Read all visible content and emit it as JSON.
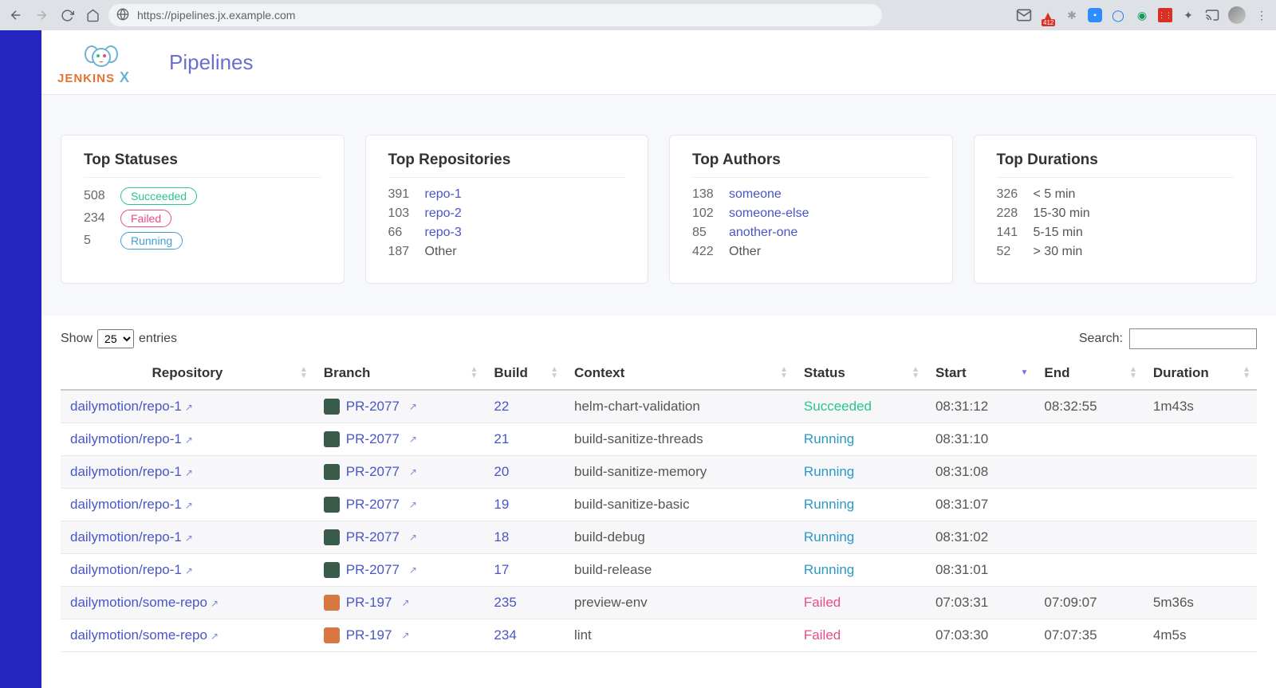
{
  "browser": {
    "url": "https://pipelines.jx.example.com",
    "ext_badge": "412"
  },
  "header": {
    "logo_text_a": "JENKINS",
    "logo_text_b": "X",
    "title": "Pipelines"
  },
  "cards": {
    "statuses": {
      "title": "Top Statuses",
      "rows": [
        {
          "count": "508",
          "label": "Succeeded",
          "pill_class": "succeeded"
        },
        {
          "count": "234",
          "label": "Failed",
          "pill_class": "failed"
        },
        {
          "count": "5",
          "label": "Running",
          "pill_class": "running"
        }
      ]
    },
    "repositories": {
      "title": "Top Repositories",
      "rows": [
        {
          "count": "391",
          "label": "repo-1",
          "is_link": true
        },
        {
          "count": "103",
          "label": "repo-2",
          "is_link": true
        },
        {
          "count": "66",
          "label": "repo-3",
          "is_link": true
        },
        {
          "count": "187",
          "label": "Other",
          "is_link": false
        }
      ]
    },
    "authors": {
      "title": "Top Authors",
      "rows": [
        {
          "count": "138",
          "label": "someone",
          "is_link": true
        },
        {
          "count": "102",
          "label": "someone-else",
          "is_link": true
        },
        {
          "count": "85",
          "label": "another-one",
          "is_link": true
        },
        {
          "count": "422",
          "label": "Other",
          "is_link": false
        }
      ]
    },
    "durations": {
      "title": "Top Durations",
      "rows": [
        {
          "count": "326",
          "label": "< 5 min"
        },
        {
          "count": "228",
          "label": "15-30 min"
        },
        {
          "count": "141",
          "label": "5-15 min"
        },
        {
          "count": "52",
          "label": "> 30 min"
        }
      ]
    }
  },
  "table": {
    "show_label_pre": "Show",
    "show_label_post": "entries",
    "show_value": "25",
    "search_label": "Search:",
    "columns": [
      "Repository",
      "Branch",
      "Build",
      "Context",
      "Status",
      "Start",
      "End",
      "Duration"
    ],
    "sorted_col": 5,
    "sorted_dir": "desc",
    "rows": [
      {
        "repo": "dailymotion/repo-1",
        "branch": "PR-2077",
        "avatar_bg": "#3a5a4a",
        "build": "22",
        "context": "helm-chart-validation",
        "status": "Succeeded",
        "status_class": "succeeded",
        "start": "08:31:12",
        "end": "08:32:55",
        "duration": "1m43s"
      },
      {
        "repo": "dailymotion/repo-1",
        "branch": "PR-2077",
        "avatar_bg": "#3a5a4a",
        "build": "21",
        "context": "build-sanitize-threads",
        "status": "Running",
        "status_class": "running",
        "start": "08:31:10",
        "end": "",
        "duration": ""
      },
      {
        "repo": "dailymotion/repo-1",
        "branch": "PR-2077",
        "avatar_bg": "#3a5a4a",
        "build": "20",
        "context": "build-sanitize-memory",
        "status": "Running",
        "status_class": "running",
        "start": "08:31:08",
        "end": "",
        "duration": ""
      },
      {
        "repo": "dailymotion/repo-1",
        "branch": "PR-2077",
        "avatar_bg": "#3a5a4a",
        "build": "19",
        "context": "build-sanitize-basic",
        "status": "Running",
        "status_class": "running",
        "start": "08:31:07",
        "end": "",
        "duration": ""
      },
      {
        "repo": "dailymotion/repo-1",
        "branch": "PR-2077",
        "avatar_bg": "#3a5a4a",
        "build": "18",
        "context": "build-debug",
        "status": "Running",
        "status_class": "running",
        "start": "08:31:02",
        "end": "",
        "duration": ""
      },
      {
        "repo": "dailymotion/repo-1",
        "branch": "PR-2077",
        "avatar_bg": "#3a5a4a",
        "build": "17",
        "context": "build-release",
        "status": "Running",
        "status_class": "running",
        "start": "08:31:01",
        "end": "",
        "duration": ""
      },
      {
        "repo": "dailymotion/some-repo",
        "branch": "PR-197",
        "avatar_bg": "#d97742",
        "build": "235",
        "context": "preview-env",
        "status": "Failed",
        "status_class": "failed",
        "start": "07:03:31",
        "end": "07:09:07",
        "duration": "5m36s"
      },
      {
        "repo": "dailymotion/some-repo",
        "branch": "PR-197",
        "avatar_bg": "#d97742",
        "build": "234",
        "context": "lint",
        "status": "Failed",
        "status_class": "failed",
        "start": "07:03:30",
        "end": "07:07:35",
        "duration": "4m5s"
      }
    ]
  },
  "colors": {
    "sidebar": "#2525c0",
    "link": "#4857c5",
    "succeeded": "#29c58c",
    "running": "#2b98c6",
    "failed": "#e84b8a",
    "card_bg": "#f7f8fc"
  }
}
